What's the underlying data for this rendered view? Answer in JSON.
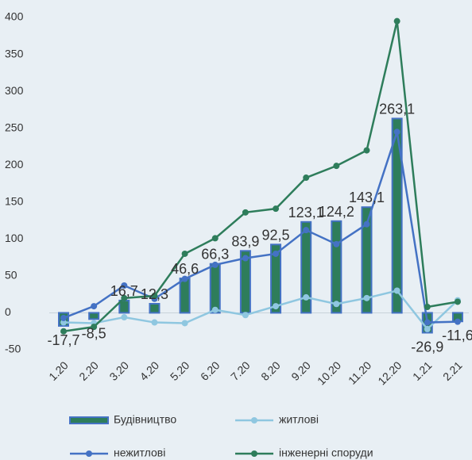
{
  "chart_data": {
    "type": "bar",
    "categories": [
      "1.20",
      "2.20",
      "3.20",
      "4.20",
      "5.20",
      "6.20",
      "7.20",
      "8.20",
      "9.20",
      "10.20",
      "11.20",
      "12.20",
      "1.21",
      "2.21"
    ],
    "series": [
      {
        "name": "Будівництво",
        "type": "bar",
        "color": "#2e7d5b",
        "border": "#4472c4",
        "values": [
          -17.7,
          -8.5,
          16.7,
          12.3,
          46.6,
          66.3,
          83.9,
          92.5,
          123.1,
          124.2,
          143.1,
          263.1,
          -26.9,
          -11.6
        ],
        "value_labels": [
          "-17,7",
          "-8,5",
          "16,7",
          "12,3",
          "46,6",
          "66,3",
          "83,9",
          "92,5",
          "123,1",
          "124,2",
          "143,1",
          "263,1",
          "-26,9",
          "-11,6"
        ]
      },
      {
        "name": "житлові",
        "type": "line",
        "color": "#8fc7e0",
        "values": [
          -13,
          -14,
          -6,
          -13,
          -14,
          4,
          -3,
          9,
          21,
          12,
          20,
          30,
          -22,
          17
        ]
      },
      {
        "name": "нежитлові",
        "type": "line",
        "color": "#4472c4",
        "values": [
          -7,
          9,
          37,
          19,
          46,
          65,
          74,
          80,
          112,
          93,
          120,
          245,
          -13,
          -12
        ]
      },
      {
        "name": "інженерні споруди",
        "type": "line",
        "color": "#2e7d5b",
        "values": [
          -25,
          -19,
          20,
          23,
          80,
          101,
          136,
          141,
          183,
          199,
          220,
          395,
          8,
          15
        ]
      }
    ],
    "ylim": [
      -50,
      400
    ],
    "yticks": [
      -50,
      0,
      50,
      100,
      150,
      200,
      250,
      300,
      350,
      400
    ],
    "grid": false
  }
}
